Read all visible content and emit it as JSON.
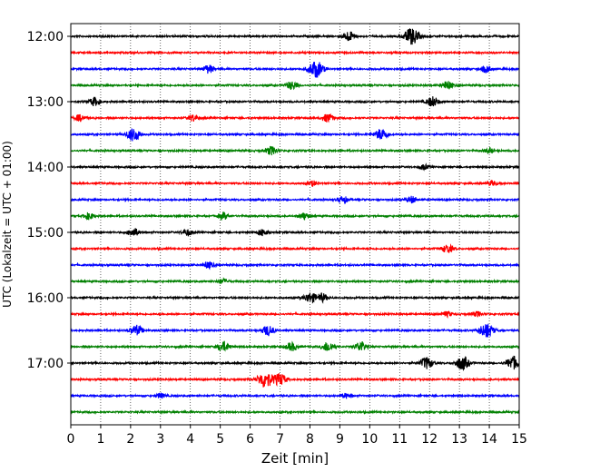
{
  "chart_data": {
    "type": "line",
    "xlabel": "Zeit  [min]",
    "ylabel": "UTC (Lokalzeit = UTC + 01:00)",
    "xlim": [
      0,
      15
    ],
    "x_ticks": [
      0,
      1,
      2,
      3,
      4,
      5,
      6,
      7,
      8,
      9,
      10,
      11,
      12,
      13,
      14,
      15
    ],
    "y_ticks": [
      {
        "label": "12:00",
        "trace": 0
      },
      {
        "label": "13:00",
        "trace": 4
      },
      {
        "label": "14:00",
        "trace": 8
      },
      {
        "label": "15:00",
        "trace": 12
      },
      {
        "label": "16:00",
        "trace": 16
      },
      {
        "label": "17:00",
        "trace": 20
      }
    ],
    "grid": {
      "x": true,
      "y": false
    },
    "colors": [
      "#000000",
      "#ff0000",
      "#0000ff",
      "#008000"
    ],
    "traces": [
      {
        "start": "12:00",
        "color": "#000000",
        "bursts": [
          [
            9.3,
            0.6
          ],
          [
            11.4,
            1.0
          ]
        ]
      },
      {
        "start": "12:15",
        "color": "#ff0000",
        "bursts": []
      },
      {
        "start": "12:30",
        "color": "#0000ff",
        "bursts": [
          [
            4.6,
            0.5
          ],
          [
            8.2,
            1.0
          ],
          [
            13.9,
            0.4
          ]
        ]
      },
      {
        "start": "12:45",
        "color": "#008000",
        "bursts": [
          [
            7.4,
            0.5
          ],
          [
            12.6,
            0.5
          ]
        ]
      },
      {
        "start": "13:00",
        "color": "#000000",
        "bursts": [
          [
            0.8,
            0.5
          ],
          [
            12.1,
            0.6
          ]
        ]
      },
      {
        "start": "13:15",
        "color": "#ff0000",
        "bursts": [
          [
            0.3,
            0.4
          ],
          [
            4.1,
            0.4
          ],
          [
            8.6,
            0.5
          ]
        ]
      },
      {
        "start": "13:30",
        "color": "#0000ff",
        "bursts": [
          [
            2.1,
            0.8
          ],
          [
            10.4,
            0.7
          ]
        ]
      },
      {
        "start": "13:45",
        "color": "#008000",
        "bursts": [
          [
            6.7,
            0.5
          ],
          [
            14.0,
            0.3
          ]
        ]
      },
      {
        "start": "14:00",
        "color": "#000000",
        "bursts": [
          [
            11.8,
            0.3
          ]
        ]
      },
      {
        "start": "14:15",
        "color": "#ff0000",
        "bursts": [
          [
            8.1,
            0.3
          ],
          [
            14.1,
            0.3
          ]
        ]
      },
      {
        "start": "14:30",
        "color": "#0000ff",
        "bursts": [
          [
            9.1,
            0.4
          ],
          [
            11.4,
            0.4
          ]
        ]
      },
      {
        "start": "14:45",
        "color": "#008000",
        "bursts": [
          [
            0.6,
            0.4
          ],
          [
            5.1,
            0.4
          ],
          [
            7.8,
            0.4
          ]
        ]
      },
      {
        "start": "15:00",
        "color": "#000000",
        "bursts": [
          [
            2.1,
            0.5
          ],
          [
            3.9,
            0.4
          ],
          [
            6.4,
            0.4
          ]
        ]
      },
      {
        "start": "15:15",
        "color": "#ff0000",
        "bursts": [
          [
            12.6,
            0.5
          ]
        ]
      },
      {
        "start": "15:30",
        "color": "#0000ff",
        "bursts": [
          [
            4.6,
            0.4
          ]
        ]
      },
      {
        "start": "15:45",
        "color": "#008000",
        "bursts": [
          [
            5.1,
            0.3
          ]
        ]
      },
      {
        "start": "16:00",
        "color": "#000000",
        "bursts": [
          [
            8.0,
            0.6
          ],
          [
            8.4,
            0.5
          ]
        ]
      },
      {
        "start": "16:15",
        "color": "#ff0000",
        "bursts": [
          [
            12.6,
            0.3
          ],
          [
            13.6,
            0.3
          ]
        ]
      },
      {
        "start": "16:30",
        "color": "#0000ff",
        "bursts": [
          [
            2.2,
            0.6
          ],
          [
            6.6,
            0.6
          ],
          [
            13.9,
            0.9
          ]
        ]
      },
      {
        "start": "16:45",
        "color": "#008000",
        "bursts": [
          [
            5.1,
            0.6
          ],
          [
            7.4,
            0.5
          ],
          [
            8.6,
            0.6
          ],
          [
            9.7,
            0.6
          ]
        ]
      },
      {
        "start": "17:00",
        "color": "#000000",
        "bursts": [
          [
            11.9,
            0.7
          ],
          [
            13.1,
            0.8
          ],
          [
            14.8,
            0.8
          ]
        ]
      },
      {
        "start": "17:15",
        "color": "#ff0000",
        "bursts": [
          [
            6.5,
            1.0
          ],
          [
            7.0,
            0.7
          ]
        ]
      },
      {
        "start": "17:30",
        "color": "#0000ff",
        "bursts": [
          [
            3.0,
            0.3
          ],
          [
            9.2,
            0.3
          ]
        ]
      },
      {
        "start": "17:45",
        "color": "#008000",
        "bursts": []
      }
    ]
  }
}
